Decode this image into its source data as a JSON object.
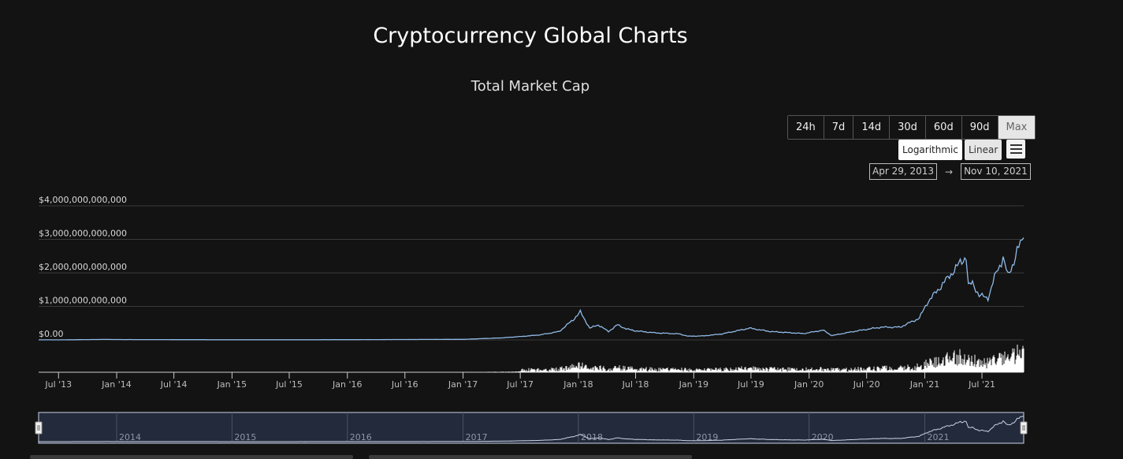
{
  "page": {
    "title": "Cryptocurrency Global Charts"
  },
  "controls": {
    "ranges": [
      "24h",
      "7d",
      "14d",
      "30d",
      "60d",
      "90d",
      "Max"
    ],
    "active_range": "Max",
    "scale_log_label": "Logarithmic",
    "scale_linear_label": "Linear",
    "menu_icon": "hamburger-menu-icon",
    "date_from": "Apr 29, 2013",
    "date_arrow": "→",
    "date_to": "Nov 10, 2021"
  },
  "colors": {
    "background": "#131313",
    "line": "#8fb9e6",
    "volume": "#ffffff",
    "navigator_fill": "#232a3b",
    "navigator_border": "#c9d6ea"
  },
  "chart_data": {
    "type": "line",
    "title": "Total Market Cap",
    "y_ticks": [
      "$4,000,000,000,000",
      "$3,000,000,000,000",
      "$2,000,000,000,000",
      "$1,000,000,000,000",
      "$0.00"
    ],
    "ylim": [
      0,
      4000000000000
    ],
    "x_ticks": [
      "Jul '13",
      "Jan '14",
      "Jul '14",
      "Jan '15",
      "Jul '15",
      "Jan '16",
      "Jul '16",
      "Jan '17",
      "Jul '17",
      "Jan '18",
      "Jul '18",
      "Jan '19",
      "Jul '19",
      "Jan '20",
      "Jul '20",
      "Jan '21",
      "Jul '21"
    ],
    "navigator_labels": [
      "2014",
      "2015",
      "2016",
      "2017",
      "2018",
      "2019",
      "2020",
      "2021"
    ],
    "grid": true,
    "series": [
      {
        "values_trillions": [
          [
            "2013-04-29",
            0.0015
          ],
          [
            "2013-07-01",
            0.0011
          ],
          [
            "2013-12-01",
            0.015
          ],
          [
            "2014-01-01",
            0.011
          ],
          [
            "2014-07-01",
            0.008
          ],
          [
            "2015-01-01",
            0.004
          ],
          [
            "2015-07-01",
            0.004
          ],
          [
            "2016-01-01",
            0.007
          ],
          [
            "2016-07-01",
            0.012
          ],
          [
            "2017-01-01",
            0.017
          ],
          [
            "2017-05-01",
            0.06
          ],
          [
            "2017-07-01",
            0.1
          ],
          [
            "2017-09-01",
            0.15
          ],
          [
            "2017-11-01",
            0.25
          ],
          [
            "2017-12-15",
            0.6
          ],
          [
            "2018-01-07",
            0.83
          ],
          [
            "2018-02-06",
            0.35
          ],
          [
            "2018-03-05",
            0.45
          ],
          [
            "2018-04-06",
            0.25
          ],
          [
            "2018-05-05",
            0.45
          ],
          [
            "2018-06-01",
            0.33
          ],
          [
            "2018-07-01",
            0.27
          ],
          [
            "2018-09-01",
            0.21
          ],
          [
            "2018-11-15",
            0.18
          ],
          [
            "2018-12-15",
            0.11
          ],
          [
            "2019-02-01",
            0.12
          ],
          [
            "2019-04-01",
            0.18
          ],
          [
            "2019-06-26",
            0.35
          ],
          [
            "2019-09-01",
            0.25
          ],
          [
            "2019-12-15",
            0.19
          ],
          [
            "2020-02-14",
            0.29
          ],
          [
            "2020-03-13",
            0.13
          ],
          [
            "2020-06-01",
            0.27
          ],
          [
            "2020-08-15",
            0.38
          ],
          [
            "2020-10-15",
            0.38
          ],
          [
            "2020-12-15",
            0.65
          ],
          [
            "2021-01-08",
            1.1
          ],
          [
            "2021-02-21",
            1.6
          ],
          [
            "2021-03-15",
            1.85
          ],
          [
            "2021-04-14",
            2.2
          ],
          [
            "2021-05-12",
            2.5
          ],
          [
            "2021-05-19",
            1.6
          ],
          [
            "2021-06-01",
            1.7
          ],
          [
            "2021-06-22",
            1.33
          ],
          [
            "2021-07-20",
            1.25
          ],
          [
            "2021-08-15",
            2.0
          ],
          [
            "2021-09-06",
            2.45
          ],
          [
            "2021-09-21",
            1.9
          ],
          [
            "2021-10-10",
            2.35
          ],
          [
            "2021-10-20",
            2.65
          ],
          [
            "2021-11-10",
            3.05
          ]
        ]
      }
    ]
  }
}
